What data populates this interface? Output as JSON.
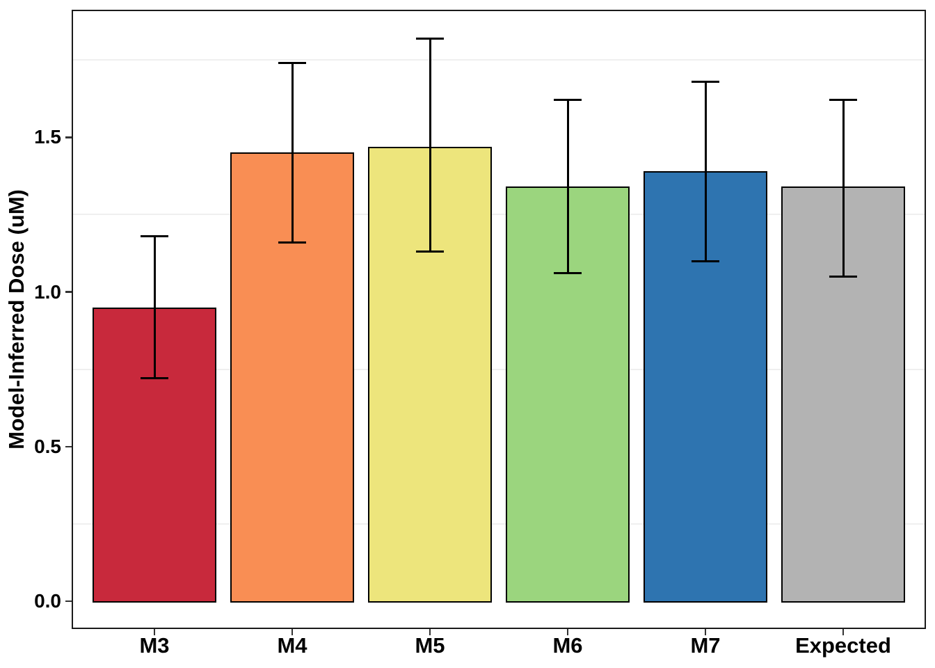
{
  "chart_data": {
    "type": "bar",
    "title": "",
    "xlabel": "",
    "ylabel": "Model-Inferred Dose (uM)",
    "categories": [
      "M3",
      "M4",
      "M5",
      "M6",
      "M7",
      "Expected"
    ],
    "values": [
      0.95,
      1.45,
      1.47,
      1.34,
      1.39,
      1.34
    ],
    "error_low": [
      0.72,
      1.16,
      1.13,
      1.06,
      1.1,
      1.05
    ],
    "error_high": [
      1.18,
      1.74,
      1.82,
      1.62,
      1.68,
      1.62
    ],
    "bar_colors": [
      "#C8293C",
      "#F98E54",
      "#EDE57C",
      "#9BD57E",
      "#2E74B0",
      "#B3B3B3"
    ],
    "bar_border_color": "#000000",
    "error_bar_color": "#000000",
    "yticks": [
      0.0,
      0.5,
      1.0,
      1.5
    ],
    "ytick_labels": [
      "0.0",
      "0.5",
      "1.0",
      "1.5"
    ],
    "minor_gridlines": [
      0.25,
      0.75,
      1.25,
      1.75
    ],
    "minor_gridline_color": "#efefef",
    "ylim": [
      -0.09,
      1.91
    ],
    "grid": "minor-horizontal-only",
    "legend": "none"
  }
}
